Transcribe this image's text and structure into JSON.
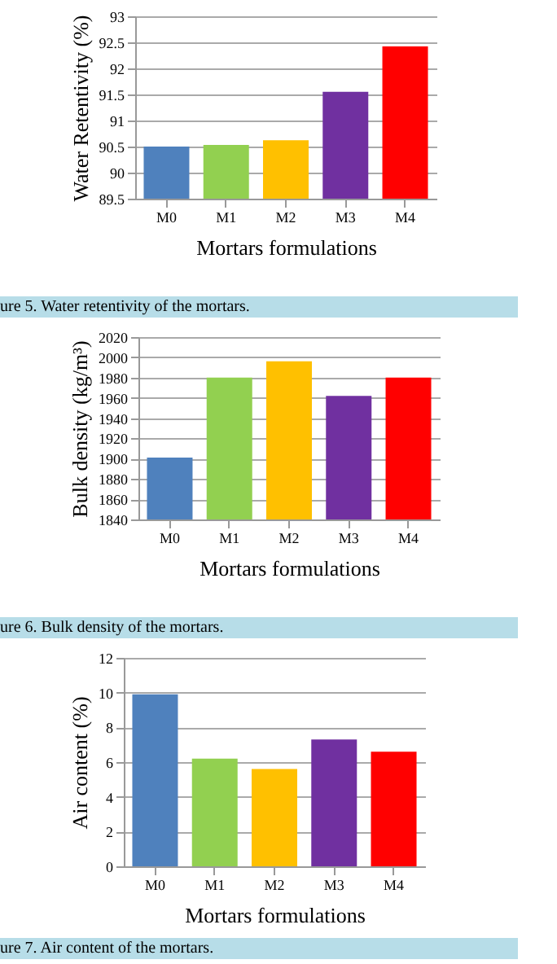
{
  "chart_data": [
    {
      "type": "bar",
      "xlabel": "Mortars formulations",
      "ylabel": "Water Retentivity (%)",
      "categories": [
        "M0",
        "M1",
        "M2",
        "M3",
        "M4"
      ],
      "values": [
        90.5,
        90.53,
        90.62,
        91.55,
        92.42
      ],
      "colors": [
        "#4f81bd",
        "#92d050",
        "#ffc000",
        "#7030a0",
        "#ff0000"
      ],
      "ylim": [
        89.5,
        93
      ],
      "yticks": [
        89.5,
        90,
        90.5,
        91,
        91.5,
        92,
        92.5,
        93
      ],
      "grid": "y",
      "annotations": [
        "ure 5. Water retentivity of the mortars."
      ]
    },
    {
      "type": "bar",
      "xlabel": "Mortars formulations",
      "ylabel": "Bulk density (kg/m³)",
      "categories": [
        "M0",
        "M1",
        "M2",
        "M3",
        "M4"
      ],
      "values": [
        1901,
        1980,
        1996,
        1962,
        1980
      ],
      "colors": [
        "#4f81bd",
        "#92d050",
        "#ffc000",
        "#7030a0",
        "#ff0000"
      ],
      "ylim": [
        1840,
        2020
      ],
      "yticks": [
        1840,
        1860,
        1880,
        1900,
        1920,
        1940,
        1960,
        1980,
        2000,
        2020
      ],
      "grid": "y",
      "annotations": [
        "ure 6. Bulk density of the mortars."
      ]
    },
    {
      "type": "bar",
      "xlabel": "Mortars formulations",
      "ylabel": "Air content  (%)",
      "categories": [
        "M0",
        "M1",
        "M2",
        "M3",
        "M4"
      ],
      "values": [
        9.9,
        6.2,
        5.6,
        7.3,
        6.6
      ],
      "colors": [
        "#4f81bd",
        "#92d050",
        "#ffc000",
        "#7030a0",
        "#ff0000"
      ],
      "ylim": [
        0,
        12
      ],
      "yticks": [
        0,
        2,
        4,
        6,
        8,
        10,
        12
      ],
      "grid": "y",
      "annotations": [
        "ure 7. Air content of the mortars."
      ]
    }
  ]
}
